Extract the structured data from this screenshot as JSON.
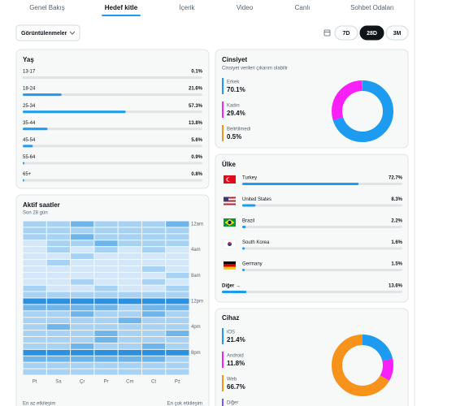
{
  "tabs": [
    "Genel Bakış",
    "Hedef kitle",
    "İçerik",
    "Video",
    "Canlı",
    "Sohbet Odaları"
  ],
  "active_tab_index": 1,
  "metric_dropdown": "Görüntülenmeler",
  "ranges": [
    "7D",
    "28D",
    "3M"
  ],
  "active_range_index": 1,
  "age": {
    "title": "Yaş",
    "rows": [
      {
        "label": "13-17",
        "value": 0.1,
        "value_label": "0.1%"
      },
      {
        "label": "18-24",
        "value": 21.6,
        "value_label": "21.6%"
      },
      {
        "label": "25-34",
        "value": 57.3,
        "value_label": "57.3%"
      },
      {
        "label": "35-44",
        "value": 13.8,
        "value_label": "13.8%"
      },
      {
        "label": "45-54",
        "value": 5.6,
        "value_label": "5.6%"
      },
      {
        "label": "55-64",
        "value": 0.9,
        "value_label": "0.9%"
      },
      {
        "label": "65+",
        "value": 0.8,
        "value_label": "0.8%"
      }
    ]
  },
  "active_hours": {
    "title": "Aktif saatler",
    "subtitle": "Son 28 gün",
    "days": [
      "Pt",
      "Sa",
      "Çr",
      "Pr",
      "Cm",
      "Ct",
      "Pz"
    ],
    "times": [
      "12am",
      "4am",
      "8am",
      "12pm",
      "4pm",
      "8pm"
    ],
    "legend_min": "En az etkileşim",
    "legend_max": "En çok etkileşim",
    "levels": [
      [
        1,
        1,
        2,
        1,
        1,
        1,
        2
      ],
      [
        1,
        1,
        1,
        1,
        1,
        1,
        1
      ],
      [
        1,
        1,
        2,
        1,
        1,
        1,
        1
      ],
      [
        0,
        1,
        1,
        2,
        1,
        1,
        1
      ],
      [
        0,
        1,
        0,
        1,
        0,
        1,
        0
      ],
      [
        0,
        0,
        1,
        0,
        0,
        0,
        0
      ],
      [
        0,
        1,
        0,
        0,
        0,
        0,
        0
      ],
      [
        0,
        0,
        0,
        0,
        0,
        1,
        0
      ],
      [
        0,
        0,
        0,
        0,
        0,
        0,
        1
      ],
      [
        0,
        0,
        1,
        0,
        0,
        1,
        0
      ],
      [
        1,
        0,
        0,
        1,
        0,
        0,
        1
      ],
      [
        1,
        1,
        1,
        1,
        1,
        1,
        1
      ],
      [
        3,
        3,
        3,
        3,
        3,
        3,
        3
      ],
      [
        2,
        2,
        2,
        2,
        1,
        2,
        2
      ],
      [
        1,
        1,
        2,
        1,
        1,
        2,
        1
      ],
      [
        1,
        1,
        1,
        1,
        2,
        1,
        1
      ],
      [
        1,
        2,
        1,
        1,
        1,
        1,
        1
      ],
      [
        1,
        1,
        1,
        2,
        1,
        1,
        2
      ],
      [
        1,
        1,
        1,
        2,
        1,
        1,
        1
      ],
      [
        1,
        1,
        2,
        1,
        1,
        2,
        1
      ],
      [
        3,
        3,
        3,
        3,
        3,
        3,
        3
      ],
      [
        2,
        2,
        2,
        2,
        2,
        2,
        1
      ],
      [
        1,
        1,
        1,
        1,
        1,
        1,
        1
      ],
      [
        1,
        1,
        1,
        1,
        1,
        1,
        1
      ]
    ]
  },
  "gender": {
    "title": "Cinsiyet",
    "subtitle": "Cinsiyet verileri çıkarım olabilir",
    "items": [
      {
        "label": "Erkek",
        "value": 70.1,
        "value_label": "70.1%",
        "color": "#1d9bf0"
      },
      {
        "label": "Kadın",
        "value": 29.4,
        "value_label": "29.4%",
        "color": "#f91ff9"
      },
      {
        "label": "Belirtilmedi",
        "value": 0.5,
        "value_label": "0.5%",
        "color": "#f7931a"
      }
    ]
  },
  "country": {
    "title": "Ülke",
    "rows": [
      {
        "label": "Turkey",
        "value": 72.7,
        "value_label": "72.7%"
      },
      {
        "label": "United States",
        "value": 8.3,
        "value_label": "8.3%"
      },
      {
        "label": "Brazil",
        "value": 2.2,
        "value_label": "2.2%"
      },
      {
        "label": "South Korea",
        "value": 1.6,
        "value_label": "1.6%"
      },
      {
        "label": "Germany",
        "value": 1.5,
        "value_label": "1.5%"
      }
    ],
    "other": {
      "label": "Diğer →",
      "value": 13.6,
      "value_label": "13.6%"
    }
  },
  "device": {
    "title": "Cihaz",
    "items": [
      {
        "label": "iOS",
        "value": 21.4,
        "value_label": "21.4%",
        "color": "#1d9bf0"
      },
      {
        "label": "Android",
        "value": 11.8,
        "value_label": "11.8%",
        "color": "#f91ff9"
      },
      {
        "label": "Web",
        "value": 66.7,
        "value_label": "66.7%",
        "color": "#f7931a"
      },
      {
        "label": "Diğer",
        "color": "#7856ff"
      }
    ]
  }
}
